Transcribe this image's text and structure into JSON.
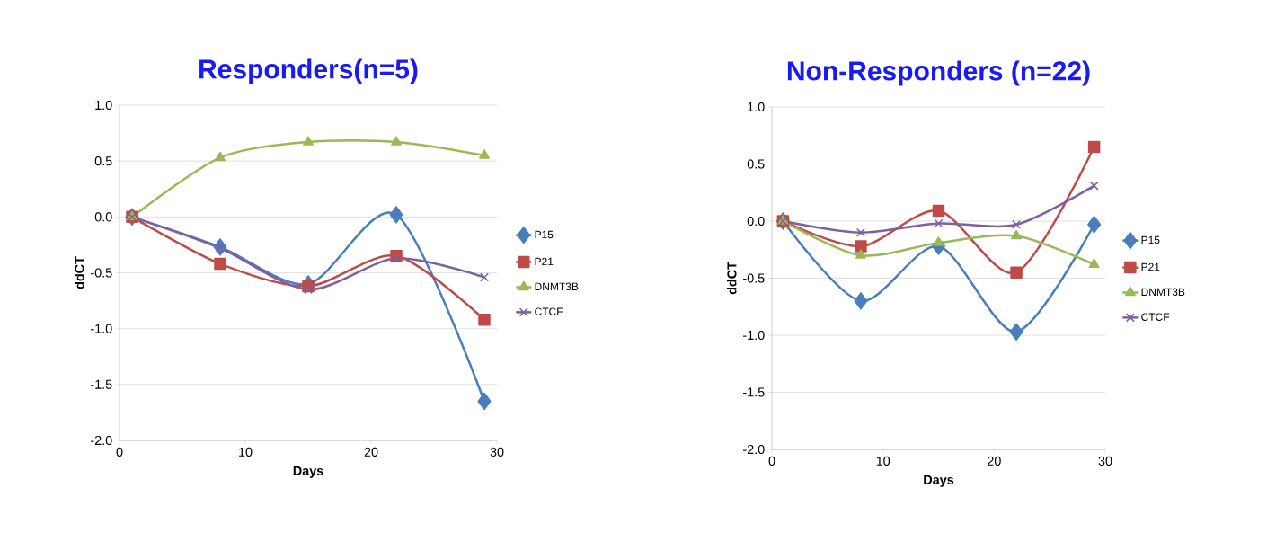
{
  "chart_data": [
    {
      "type": "line",
      "title": "Responders(n=5)",
      "xlabel": "Days",
      "ylabel": "ddCT",
      "x": [
        1,
        8,
        15,
        22,
        29
      ],
      "xlim": [
        0,
        30
      ],
      "xticks": [
        0,
        10,
        20,
        30
      ],
      "ylim": [
        -2,
        1
      ],
      "yticks": [
        {
          "value": -2,
          "label": "-2.0"
        },
        {
          "value": -1.5,
          "label": "-1.5"
        },
        {
          "value": -1,
          "label": "-1.0"
        },
        {
          "value": -0.5,
          "label": "-0.5"
        },
        {
          "value": 0,
          "label": "0.0"
        },
        {
          "value": 0.5,
          "label": "0.5"
        },
        {
          "value": 1,
          "label": "1.0"
        }
      ],
      "grid": "y",
      "legend": "right",
      "series": [
        {
          "name": "P15",
          "color": "#4a7ebb",
          "marker": "diamond",
          "values": [
            0,
            -0.27,
            -0.6,
            0.02,
            -1.65
          ]
        },
        {
          "name": "P21",
          "color": "#be4b48",
          "marker": "square",
          "values": [
            0,
            -0.42,
            -0.62,
            -0.35,
            -0.92
          ]
        },
        {
          "name": "DNMT3B",
          "color": "#98b954",
          "marker": "triangle",
          "values": [
            0,
            0.53,
            0.67,
            0.67,
            0.55
          ]
        },
        {
          "name": "CTCF",
          "color": "#7d60a0",
          "marker": "cross",
          "values": [
            0,
            -0.28,
            -0.65,
            -0.37,
            -0.54
          ]
        }
      ]
    },
    {
      "type": "line",
      "title": "Non-Responders (n=22)",
      "xlabel": "Days",
      "ylabel": "ddCT",
      "x": [
        1,
        8,
        15,
        22,
        29
      ],
      "xlim": [
        0,
        30
      ],
      "xticks": [
        0,
        10,
        20,
        30
      ],
      "ylim": [
        -2,
        1
      ],
      "yticks": [
        {
          "value": -2,
          "label": "-2.0"
        },
        {
          "value": -1.5,
          "label": "-1.5"
        },
        {
          "value": -1,
          "label": "-1.0"
        },
        {
          "value": -0.5,
          "label": "-0.5"
        },
        {
          "value": 0,
          "label": "0.0"
        },
        {
          "value": 0.5,
          "label": "0.5"
        },
        {
          "value": 1,
          "label": "1.0"
        }
      ],
      "grid": "y",
      "legend": "right",
      "series": [
        {
          "name": "P15",
          "color": "#4a7ebb",
          "marker": "diamond",
          "values": [
            0,
            -0.7,
            -0.22,
            -0.97,
            -0.03
          ]
        },
        {
          "name": "P21",
          "color": "#be4b48",
          "marker": "square",
          "values": [
            0,
            -0.22,
            0.09,
            -0.45,
            0.65
          ]
        },
        {
          "name": "DNMT3B",
          "color": "#98b954",
          "marker": "triangle",
          "values": [
            0,
            -0.3,
            -0.19,
            -0.13,
            -0.38
          ]
        },
        {
          "name": "CTCF",
          "color": "#7d60a0",
          "marker": "cross",
          "values": [
            0,
            -0.1,
            -0.02,
            -0.03,
            0.31
          ]
        }
      ]
    }
  ]
}
